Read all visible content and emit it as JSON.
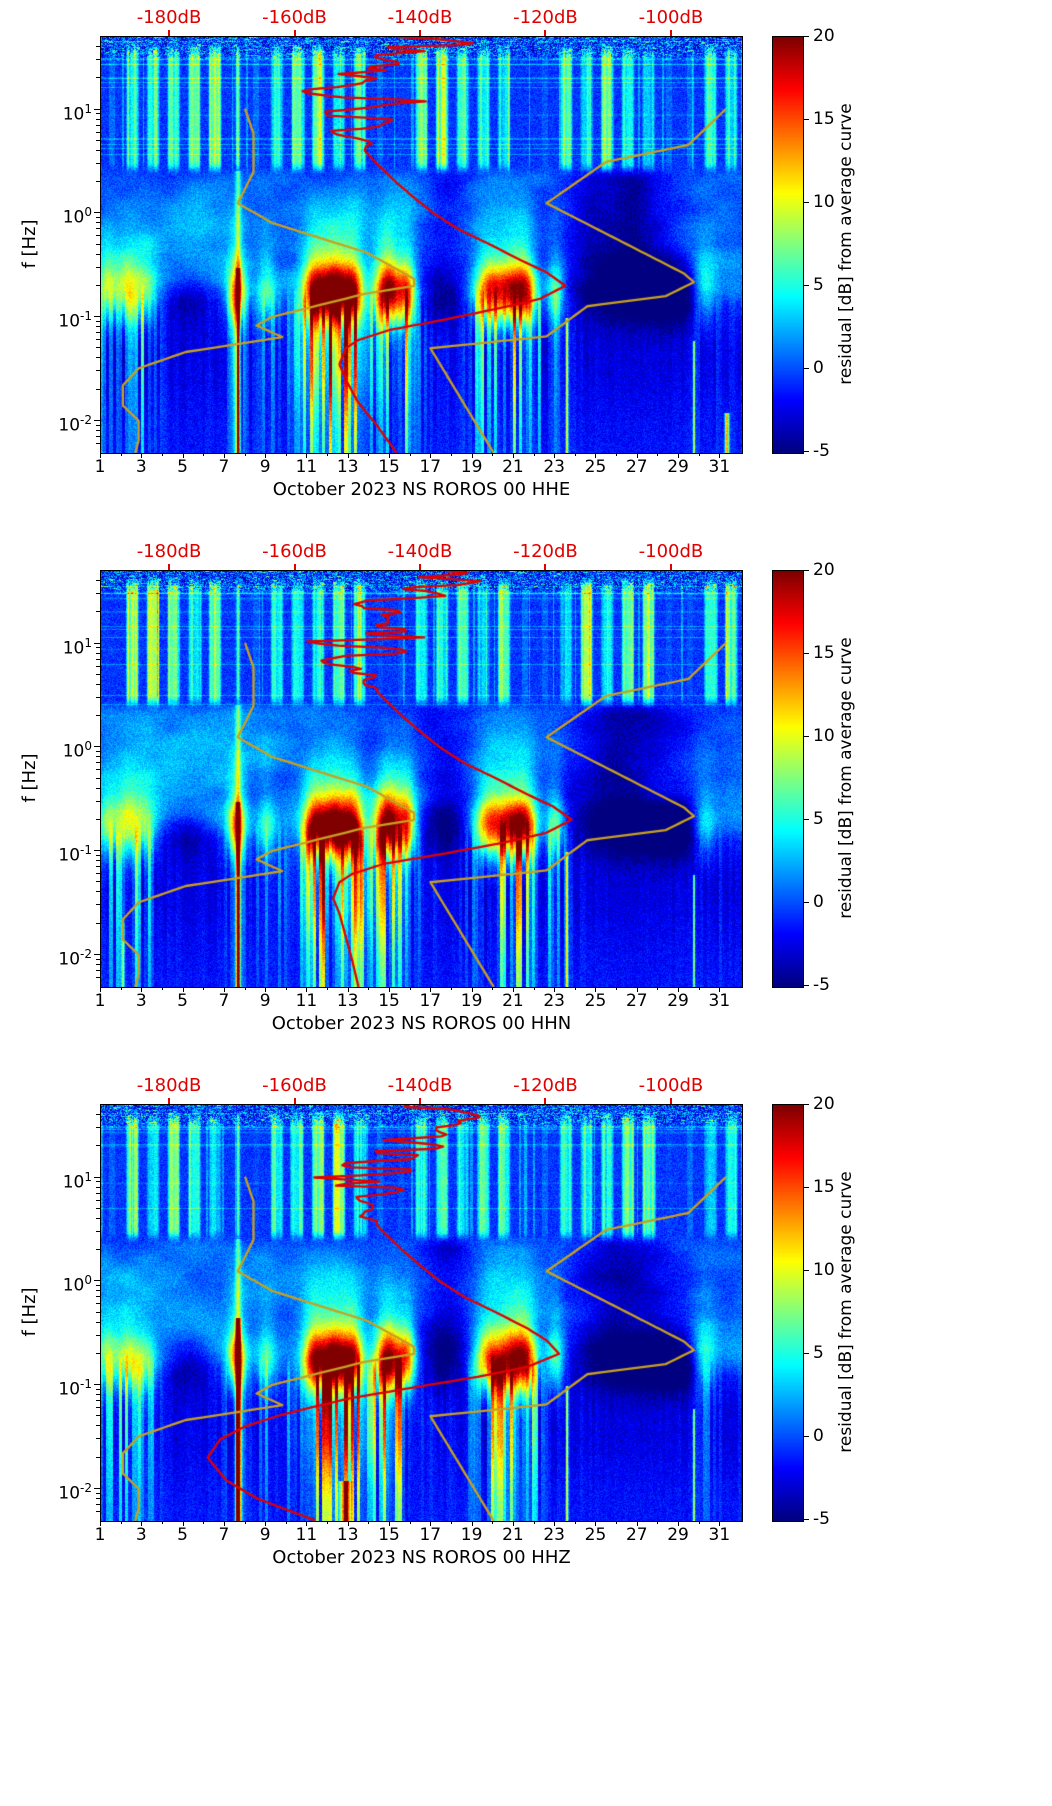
{
  "figure": {
    "background": "#ffffff",
    "panel_count": 3
  },
  "style": {
    "top_axis_color": "#e00000",
    "average_curve_color": "#e00000",
    "noise_model_color": "#c8a020",
    "tick_color": "#000000",
    "colormap": "jet"
  },
  "axes_shared": {
    "ylabel": "f [Hz]",
    "x_ticks": [
      1,
      3,
      5,
      7,
      9,
      11,
      13,
      15,
      17,
      19,
      21,
      23,
      25,
      27,
      29,
      31
    ],
    "x_range_days": [
      1,
      32
    ],
    "y_range_hz": [
      0.005,
      50
    ],
    "y_ticks": [
      {
        "label_base": "10",
        "label_exp": "1",
        "value": 10
      },
      {
        "label_base": "10",
        "label_exp": "0",
        "value": 1
      },
      {
        "label_base": "10",
        "label_exp": "-1",
        "value": 0.1
      },
      {
        "label_base": "10",
        "label_exp": "-2",
        "value": 0.01
      }
    ],
    "top_axis": {
      "ticks": [
        {
          "label": "-180dB",
          "value": -180
        },
        {
          "label": "-160dB",
          "value": -160
        },
        {
          "label": "-140dB",
          "value": -140
        },
        {
          "label": "-120dB",
          "value": -120
        },
        {
          "label": "-100dB",
          "value": -100
        }
      ],
      "range_db": [
        -191,
        -89
      ]
    },
    "colorbar": {
      "label": "residual [dB] from average curve",
      "ticks": [
        20,
        15,
        10,
        5,
        0,
        -5
      ],
      "range": [
        -5,
        20
      ],
      "colormap": "jet"
    }
  },
  "noise_models": {
    "nlnm_db_vs_hz": [
      [
        10,
        -168
      ],
      [
        5.88,
        -166.7
      ],
      [
        2.5,
        -166.7
      ],
      [
        1.25,
        -169.2
      ],
      [
        0.806,
        -163.7
      ],
      [
        0.417,
        -148.6
      ],
      [
        0.233,
        -141.1
      ],
      [
        0.2,
        -141.1
      ],
      [
        0.167,
        -149
      ],
      [
        0.1,
        -163.8
      ],
      [
        0.083,
        -166.2
      ],
      [
        0.064,
        -162.1
      ],
      [
        0.046,
        -177.5
      ],
      [
        0.032,
        -185
      ],
      [
        0.022,
        -187.5
      ],
      [
        0.014,
        -187.5
      ],
      [
        0.01,
        -185
      ],
      [
        0.0065,
        -185
      ],
      [
        0.005,
        -185.5
      ]
    ],
    "nhnm_db_vs_hz": [
      [
        10,
        -91.5
      ],
      [
        4.55,
        -97.4
      ],
      [
        3.13,
        -110.5
      ],
      [
        1.25,
        -120
      ],
      [
        0.263,
        -98.1
      ],
      [
        0.217,
        -96.5
      ],
      [
        0.159,
        -101
      ],
      [
        0.127,
        -113.5
      ],
      [
        0.065,
        -120
      ],
      [
        0.05,
        -138.5
      ],
      [
        0.005,
        -128.5
      ]
    ]
  },
  "heatmap_model": {
    "description": "approximate generative parameters of the residual spectrogram (residual dB vs average curve)",
    "microseism_band_center_hz": 0.17,
    "microseism_events": [
      [
        1.3,
        6,
        0.3
      ],
      [
        2.3,
        8,
        0.45
      ],
      [
        3.2,
        5,
        0.35
      ],
      [
        7.55,
        12,
        0.3
      ],
      [
        9.0,
        5,
        0.3
      ],
      [
        11.3,
        15,
        0.4
      ],
      [
        12.3,
        20,
        0.5
      ],
      [
        13.2,
        14,
        0.35
      ],
      [
        14.9,
        19,
        0.45
      ],
      [
        15.8,
        12,
        0.3
      ],
      [
        19.8,
        13,
        0.5
      ],
      [
        20.9,
        15,
        0.5
      ],
      [
        21.6,
        11,
        0.35
      ],
      [
        23.0,
        7,
        0.3
      ],
      [
        30.2,
        6,
        0.4
      ]
    ],
    "quiet_periods": [
      [
        5.2,
        -4,
        0.9
      ],
      [
        17.6,
        -5,
        0.9
      ],
      [
        26.6,
        -7,
        2.0
      ],
      [
        28.9,
        -5,
        1.0
      ]
    ],
    "calibration_line": [
      7.62,
      6,
      0.09,
      2.6
    ],
    "weekday_stripe_band_hz": [
      2.5,
      45
    ],
    "first_day_weekday": "Sunday"
  },
  "chart_data": [
    {
      "type": "heatmap",
      "month": "October 2023",
      "station": "NS ROROS 00",
      "channel": "HHE",
      "xlabel": "October 2023 NS ROROS 00 HHE",
      "ylabel": "f [Hz]",
      "colorbar_label": "residual [dB] from average curve",
      "x": "day of month (1-31)",
      "y": "frequency [Hz], log scale 0.005-50",
      "value": "residual [dB] from average curve, range -5 to 20",
      "overlay_curves": [
        "station average PSD curve (red, plotted on top dB axis)",
        "Peterson NLNM (yellow)",
        "Peterson NHNM (yellow)"
      ],
      "average_psd_curve_db_vs_hz": [
        [
          50,
          -141
        ],
        [
          40,
          -139
        ],
        [
          32,
          -144
        ],
        [
          26,
          -141
        ],
        [
          22,
          -147
        ],
        [
          18,
          -144
        ],
        [
          15,
          -150
        ],
        [
          12,
          -147
        ],
        [
          10,
          -152
        ],
        [
          8,
          -149
        ],
        [
          6.5,
          -153
        ],
        [
          5.2,
          -151
        ],
        [
          4,
          -149
        ],
        [
          3,
          -147
        ],
        [
          2,
          -144
        ],
        [
          1.4,
          -141
        ],
        [
          1,
          -138
        ],
        [
          0.7,
          -134
        ],
        [
          0.5,
          -129
        ],
        [
          0.35,
          -124
        ],
        [
          0.27,
          -120
        ],
        [
          0.2,
          -117
        ],
        [
          0.15,
          -121
        ],
        [
          0.12,
          -128
        ],
        [
          0.095,
          -136
        ],
        [
          0.075,
          -145
        ],
        [
          0.06,
          -150
        ],
        [
          0.05,
          -152
        ],
        [
          0.035,
          -153
        ],
        [
          0.025,
          -152
        ],
        [
          0.015,
          -150
        ],
        [
          0.009,
          -147
        ],
        [
          0.005,
          -144
        ]
      ],
      "glitch_lines": [
        [
          7.62,
          22,
          0.055,
          0.3
        ],
        [
          23.55,
          13,
          0.04,
          0.1
        ],
        [
          29.7,
          11,
          0.035,
          0.06
        ],
        [
          31.3,
          15,
          0.07,
          0.012
        ]
      ],
      "seed": 11
    },
    {
      "type": "heatmap",
      "month": "October 2023",
      "station": "NS ROROS 00",
      "channel": "HHN",
      "xlabel": "October 2023 NS ROROS 00 HHN",
      "ylabel": "f [Hz]",
      "colorbar_label": "residual [dB] from average curve",
      "x": "day of month (1-31)",
      "y": "frequency [Hz], log scale 0.005-50",
      "value": "residual [dB] from average curve, range -5 to 20",
      "overlay_curves": [
        "station average PSD curve (red, plotted on top dB axis)",
        "Peterson NLNM (yellow)",
        "Peterson NHNM (yellow)"
      ],
      "average_psd_curve_db_vs_hz": [
        [
          50,
          -140
        ],
        [
          40,
          -138
        ],
        [
          32,
          -143
        ],
        [
          26,
          -140
        ],
        [
          22,
          -146
        ],
        [
          18,
          -143
        ],
        [
          15,
          -149
        ],
        [
          12,
          -146
        ],
        [
          10,
          -151
        ],
        [
          8,
          -148
        ],
        [
          6.5,
          -152
        ],
        [
          5.2,
          -150
        ],
        [
          4,
          -148
        ],
        [
          3,
          -146
        ],
        [
          2,
          -143
        ],
        [
          1.4,
          -140
        ],
        [
          1,
          -137
        ],
        [
          0.7,
          -133
        ],
        [
          0.5,
          -128
        ],
        [
          0.35,
          -123
        ],
        [
          0.27,
          -119
        ],
        [
          0.2,
          -116
        ],
        [
          0.15,
          -120
        ],
        [
          0.12,
          -127
        ],
        [
          0.095,
          -136
        ],
        [
          0.075,
          -146
        ],
        [
          0.06,
          -151
        ],
        [
          0.05,
          -153
        ],
        [
          0.035,
          -154
        ],
        [
          0.025,
          -153
        ],
        [
          0.015,
          -152
        ],
        [
          0.009,
          -151
        ],
        [
          0.005,
          -150
        ]
      ],
      "glitch_lines": [
        [
          7.62,
          22,
          0.055,
          0.3
        ],
        [
          23.55,
          13,
          0.04,
          0.1
        ],
        [
          29.7,
          11,
          0.035,
          0.06
        ],
        [
          2.05,
          9,
          0.04,
          0.02
        ]
      ],
      "seed": 23
    },
    {
      "type": "heatmap",
      "month": "October 2023",
      "station": "NS ROROS 00",
      "channel": "HHZ",
      "xlabel": "October 2023 NS ROROS 00 HHZ",
      "ylabel": "f [Hz]",
      "colorbar_label": "residual [dB] from average curve",
      "x": "day of month (1-31)",
      "y": "frequency [Hz], log scale 0.005-50",
      "value": "residual [dB] from average curve, range -5 to 20",
      "overlay_curves": [
        "station average PSD curve (red, plotted on top dB axis)",
        "Peterson NLNM (yellow)",
        "Peterson NHNM (yellow)"
      ],
      "average_psd_curve_db_vs_hz": [
        [
          50,
          -140
        ],
        [
          40,
          -138
        ],
        [
          32,
          -143
        ],
        [
          26,
          -140
        ],
        [
          22,
          -146
        ],
        [
          18,
          -143
        ],
        [
          15,
          -149
        ],
        [
          12,
          -146
        ],
        [
          10,
          -151
        ],
        [
          8,
          -148
        ],
        [
          6.5,
          -152
        ],
        [
          5.2,
          -150
        ],
        [
          4,
          -148
        ],
        [
          3,
          -146
        ],
        [
          2,
          -143
        ],
        [
          1.4,
          -140
        ],
        [
          1,
          -137
        ],
        [
          0.7,
          -133
        ],
        [
          0.5,
          -128
        ],
        [
          0.35,
          -123
        ],
        [
          0.27,
          -120
        ],
        [
          0.2,
          -118
        ],
        [
          0.15,
          -123
        ],
        [
          0.12,
          -131
        ],
        [
          0.095,
          -141
        ],
        [
          0.075,
          -151
        ],
        [
          0.06,
          -158
        ],
        [
          0.05,
          -163
        ],
        [
          0.04,
          -168
        ],
        [
          0.03,
          -172
        ],
        [
          0.02,
          -174
        ],
        [
          0.012,
          -171
        ],
        [
          0.008,
          -166
        ],
        [
          0.005,
          -157
        ]
      ],
      "glitch_lines": [
        [
          7.62,
          26,
          0.07,
          0.45
        ],
        [
          23.55,
          13,
          0.04,
          0.1
        ],
        [
          29.7,
          11,
          0.035,
          0.06
        ],
        [
          12.8,
          16,
          0.18,
          0.012
        ]
      ],
      "seed": 37
    }
  ]
}
